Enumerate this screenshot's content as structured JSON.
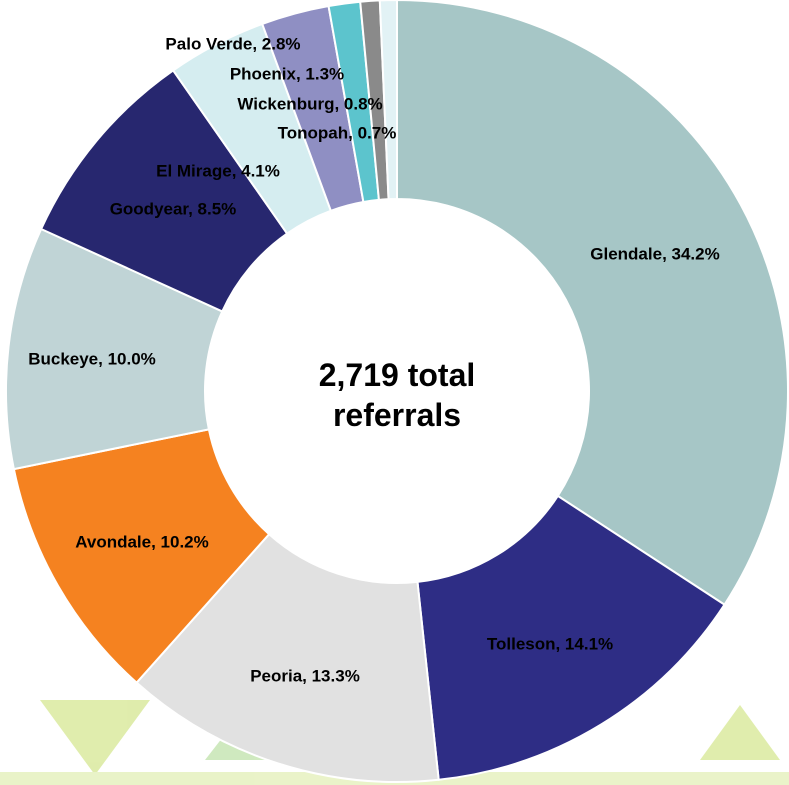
{
  "chart_data": {
    "type": "donut",
    "center_text": "2,719 total referrals",
    "values": [
      34.2,
      14.1,
      13.3,
      10.2,
      10.0,
      8.5,
      4.1,
      2.8,
      1.3,
      0.8,
      0.7
    ],
    "value_labels": [
      "Glendale, 34.2%",
      "Tolleson, 14.1%",
      "Peoria, 13.3%",
      "Avondale, 10.2%",
      "Buckeye, 10.0%",
      "Goodyear, 8.5%",
      "El Mirage, 4.1%",
      "Palo Verde, 2.8%",
      "Phoenix, 1.3%",
      "Wickenburg, 0.8%",
      "Tonopah, 0.7%"
    ],
    "colors": [
      "#a6c6c6",
      "#2e2d85",
      "#e1e1e1",
      "#f58220",
      "#c0d4d6",
      "#27276f",
      "#d5edf0",
      "#8f8fc3",
      "#5cc4cd",
      "#8a8a8a",
      "#e2f2f5"
    ]
  }
}
